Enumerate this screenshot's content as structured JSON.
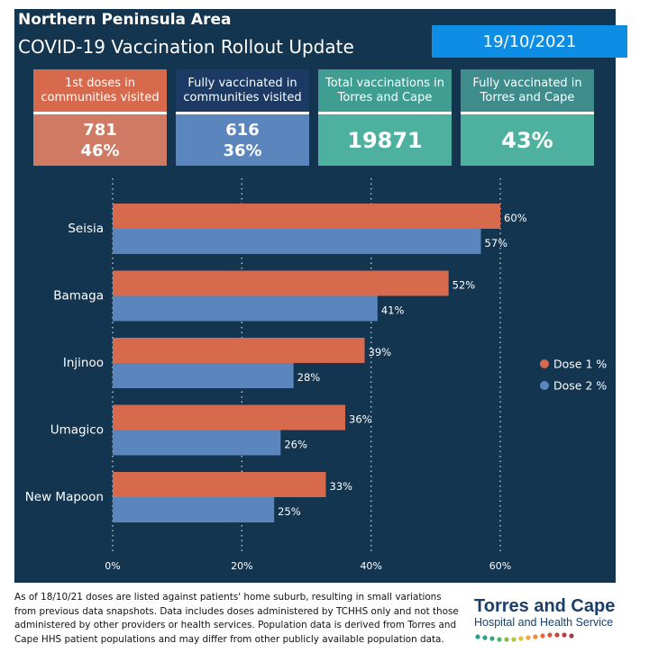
{
  "header": {
    "title": "Northern Peninsula Area",
    "subtitle": "COVID-19 Vaccination Rollout Update",
    "date": "19/10/2021"
  },
  "cards": [
    {
      "label": "1st doses in communities visited",
      "value": "781",
      "value2": "46%",
      "head_color": "#d7694d",
      "body_color": "#d07a64"
    },
    {
      "label": "Fully vaccinated in communities visited",
      "value": "616",
      "value2": "36%",
      "head_color": "#1c3a63",
      "body_color": "#5b86bd"
    },
    {
      "label": "Total vaccinations in Torres and Cape",
      "value": "19871",
      "value2": "",
      "head_color": "#3f9d92",
      "body_color": "#4eb09f"
    },
    {
      "label": "Fully vaccinated in Torres and Cape",
      "value": "43%",
      "value2": "",
      "head_color": "#3f8c8c",
      "body_color": "#4eb09f"
    }
  ],
  "chart_data": {
    "type": "bar",
    "orientation": "horizontal",
    "categories": [
      "Seisia",
      "Bamaga",
      "Injinoo",
      "Umagico",
      "New Mapoon"
    ],
    "series": [
      {
        "name": "Dose 1 %",
        "values": [
          60,
          52,
          39,
          36,
          33
        ],
        "labels": [
          "60%",
          "52%",
          "39%",
          "36%",
          "33%"
        ],
        "color": "#d7694d"
      },
      {
        "name": "Dose 2 %",
        "values": [
          57,
          41,
          28,
          26,
          25
        ],
        "labels": [
          "57%",
          "41%",
          "28%",
          "26%",
          "25%"
        ],
        "color": "#5b86bd"
      }
    ],
    "xlim": [
      0,
      60
    ],
    "xticks": [
      0,
      20,
      40,
      60
    ],
    "xtick_labels": [
      "0%",
      "20%",
      "40%",
      "60%"
    ],
    "grid": "vertical dotted",
    "legend": "right"
  },
  "footer": {
    "note": "As of 18/10/21 doses are listed against patients' home suburb, resulting in small variations from previous data snapshots. Data includes doses administered by TCHHS only and not those administered by other providers or health services. Population data is derived from Torres and Cape HHS patient populations and may differ from other publicly available population data.",
    "logo_name": "Torres and Cape",
    "logo_sub": "Hospital and Health Service"
  }
}
